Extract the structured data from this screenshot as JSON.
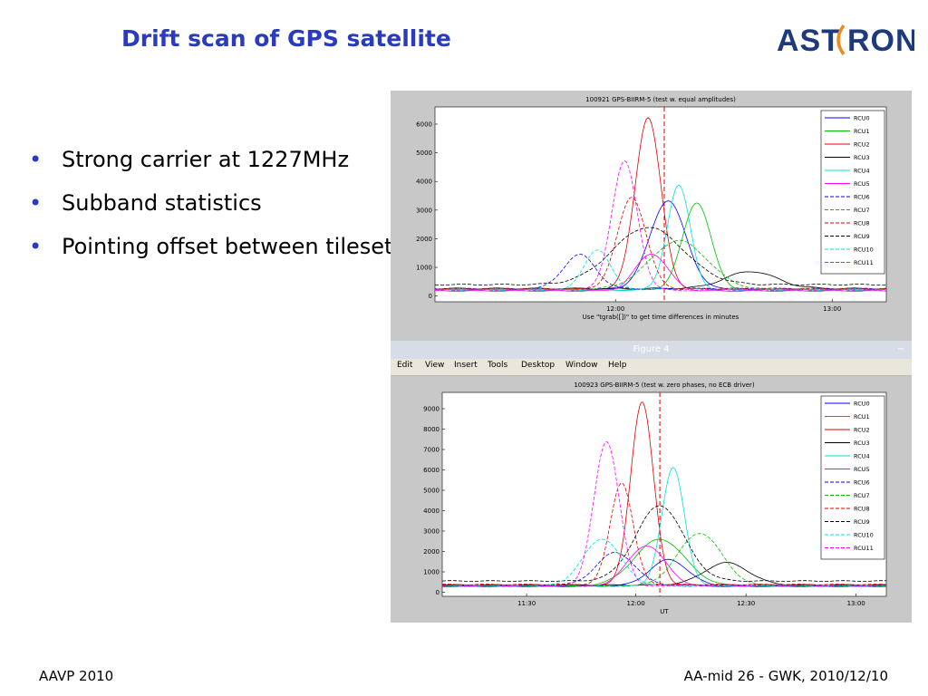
{
  "slide": {
    "title": "Drift scan of GPS satellite",
    "bullets": [
      "Strong carrier at 1227MHz",
      "Subband statistics",
      "Pointing offset between tilesets"
    ],
    "footer_left": "AAVP 2010",
    "footer_right": "AA-mid 26 - GWK, 2010/12/10",
    "logo_text": "ASTRON",
    "accent_color": "#2a3bbd",
    "logo_color": "#1e3a7a"
  },
  "figure_window": {
    "title": "Figure 4",
    "menu": [
      "Edit",
      "View",
      "Insert",
      "Tools",
      "Desktop",
      "Window",
      "Help"
    ]
  },
  "chart_data": [
    {
      "type": "line",
      "title": "100921 GPS-BIIRM-5 (test w. equal amplitudes)",
      "xlabel": "Use \"tgrab([])\" to get time differences in minutes",
      "ylabel": "",
      "xlim": [
        0,
        500
      ],
      "ylim": [
        -200,
        6600
      ],
      "yticks": [
        0,
        1000,
        2000,
        3000,
        4000,
        5000,
        6000
      ],
      "xticks": [
        {
          "pos": 200,
          "label": "12:00"
        },
        {
          "pos": 440,
          "label": "13:00"
        }
      ],
      "vline": 254,
      "legend": "top-right",
      "series": [
        {
          "name": "RCU0",
          "color": "#0000ff",
          "dash": false,
          "baseline": 230,
          "peak": 3100,
          "center": 258,
          "width": 28
        },
        {
          "name": "RCU1",
          "color": "#00c000",
          "dash": false,
          "baseline": 220,
          "peak": 3050,
          "center": 290,
          "width": 22
        },
        {
          "name": "RCU2",
          "color": "#e00000",
          "dash": false,
          "baseline": 240,
          "peak": 6000,
          "center": 236,
          "width": 20
        },
        {
          "name": "RCU3",
          "color": "#000000",
          "dash": false,
          "baseline": 260,
          "peak": 600,
          "center": 350,
          "width": 40
        },
        {
          "name": "RCU4",
          "color": "#00e0e0",
          "dash": false,
          "baseline": 210,
          "peak": 3650,
          "center": 270,
          "width": 18
        },
        {
          "name": "RCU5",
          "color": "#ff00ff",
          "dash": false,
          "baseline": 180,
          "peak": 1300,
          "center": 240,
          "width": 25
        },
        {
          "name": "RCU6",
          "color": "#0000ff",
          "dash": true,
          "baseline": 250,
          "peak": 1200,
          "center": 160,
          "width": 25
        },
        {
          "name": "RCU7",
          "color": "#00c000",
          "dash": true,
          "baseline": 230,
          "peak": 1700,
          "center": 270,
          "width": 45
        },
        {
          "name": "RCU8",
          "color": "#e00000",
          "dash": true,
          "baseline": 260,
          "peak": 3200,
          "center": 218,
          "width": 22
        },
        {
          "name": "RCU9",
          "color": "#000000",
          "dash": true,
          "baseline": 400,
          "peak": 2000,
          "center": 236,
          "width": 55
        },
        {
          "name": "RCU10",
          "color": "#00e0e0",
          "dash": true,
          "baseline": 230,
          "peak": 1400,
          "center": 180,
          "width": 20
        },
        {
          "name": "RCU11",
          "color": "#ff00ff",
          "dash": true,
          "baseline": 200,
          "peak": 4500,
          "center": 210,
          "width": 20
        }
      ]
    },
    {
      "type": "line",
      "title": "100923 GPS-BIIRM-5 (test w. zero phases, no ECB driver)",
      "xlabel": "UT",
      "ylabel": "",
      "xlim": [
        0,
        500
      ],
      "ylim": [
        -200,
        9800
      ],
      "yticks": [
        0,
        1000,
        2000,
        3000,
        4000,
        5000,
        6000,
        7000,
        8000,
        9000
      ],
      "xticks": [
        {
          "pos": 95,
          "label": "11:30"
        },
        {
          "pos": 218,
          "label": "12:00"
        },
        {
          "pos": 342,
          "label": "12:30"
        },
        {
          "pos": 466,
          "label": "13:00"
        }
      ],
      "vline": 245,
      "legend": "top-right",
      "series": [
        {
          "name": "RCU0",
          "color": "#0000ff",
          "dash": false,
          "baseline": 300,
          "peak": 1300,
          "center": 255,
          "width": 30
        },
        {
          "name": "RCU1",
          "color": "#00c000",
          "dash": false,
          "baseline": 300,
          "peak": 2300,
          "center": 245,
          "width": 40
        },
        {
          "name": "RCU2",
          "color": "#e00000",
          "dash": false,
          "baseline": 350,
          "peak": 9000,
          "center": 225,
          "width": 18
        },
        {
          "name": "RCU3",
          "color": "#000000",
          "dash": false,
          "baseline": 350,
          "peak": 1100,
          "center": 320,
          "width": 35
        },
        {
          "name": "RCU4",
          "color": "#00e0e0",
          "dash": false,
          "baseline": 300,
          "peak": 5800,
          "center": 260,
          "width": 18
        },
        {
          "name": "RCU5",
          "color": "#ff00ff",
          "dash": false,
          "baseline": 280,
          "peak": 2000,
          "center": 230,
          "width": 30
        },
        {
          "name": "RCU6",
          "color": "#0000ff",
          "dash": true,
          "baseline": 350,
          "peak": 1600,
          "center": 195,
          "width": 30
        },
        {
          "name": "RCU7",
          "color": "#00c000",
          "dash": true,
          "baseline": 300,
          "peak": 2600,
          "center": 290,
          "width": 35
        },
        {
          "name": "RCU8",
          "color": "#e00000",
          "dash": true,
          "baseline": 380,
          "peak": 5000,
          "center": 202,
          "width": 18
        },
        {
          "name": "RCU9",
          "color": "#000000",
          "dash": true,
          "baseline": 550,
          "peak": 3700,
          "center": 245,
          "width": 38
        },
        {
          "name": "RCU10",
          "color": "#00e0e0",
          "dash": true,
          "baseline": 320,
          "peak": 2300,
          "center": 180,
          "width": 30
        },
        {
          "name": "RCU11",
          "color": "#ff00ff",
          "dash": true,
          "baseline": 300,
          "peak": 7100,
          "center": 185,
          "width": 20
        }
      ]
    }
  ]
}
